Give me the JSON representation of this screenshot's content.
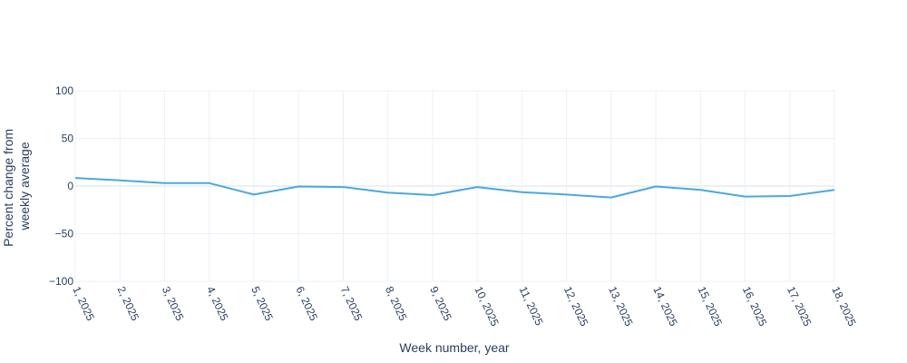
{
  "chart_data": {
    "type": "line",
    "xlabel": "Week number, year",
    "ylabel_lines": [
      "Percent change from",
      "weekly average"
    ],
    "categories": [
      "1, 2025",
      "2, 2025",
      "3, 2025",
      "4, 2025",
      "5, 2025",
      "6, 2025",
      "7, 2025",
      "8, 2025",
      "9, 2025",
      "10, 2025",
      "11, 2025",
      "12, 2025",
      "13, 2025",
      "14, 2025",
      "15, 2025",
      "16, 2025",
      "17, 2025",
      "18, 2025"
    ],
    "series": [
      {
        "color": "#4aa8e0",
        "values": [
          8.5,
          6.0,
          3.0,
          3.0,
          -9.0,
          -0.5,
          -1.0,
          -7.0,
          -9.5,
          -1.0,
          -6.5,
          -9.0,
          -12.0,
          -0.5,
          -4.0,
          -11.0,
          -10.5,
          -4.0
        ]
      }
    ],
    "ylim": [
      -100,
      100
    ],
    "yticks": [
      100,
      50,
      0,
      -50,
      -100
    ],
    "ytick_labels": [
      "100",
      "50",
      "0",
      "−50",
      "−100"
    ],
    "grid": true,
    "legend": "none"
  }
}
